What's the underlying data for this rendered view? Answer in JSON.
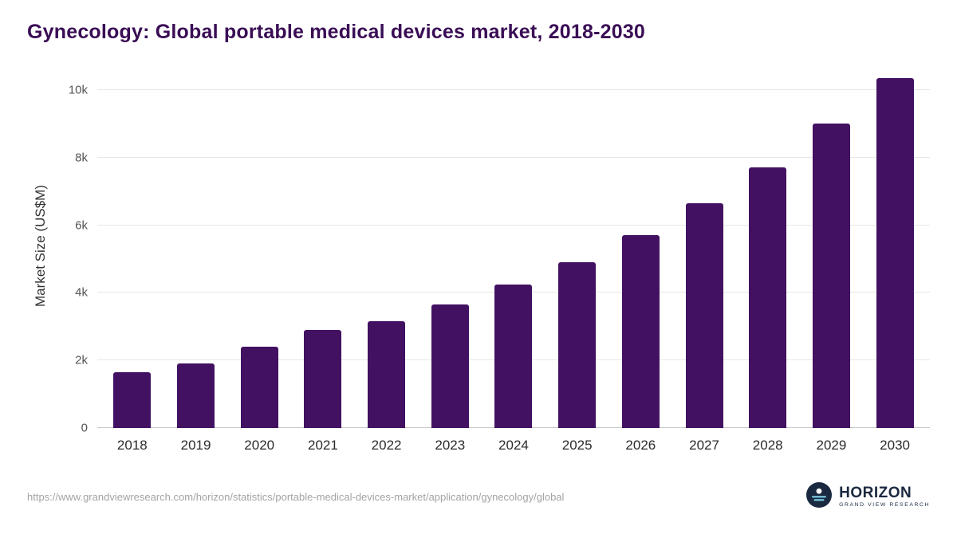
{
  "header": {
    "title": "Gynecology: Global portable medical devices market, 2018-2030"
  },
  "chart_data": {
    "type": "bar",
    "title": "Gynecology: Global portable medical devices market, 2018-2030",
    "categories": [
      "2018",
      "2019",
      "2020",
      "2021",
      "2022",
      "2023",
      "2024",
      "2025",
      "2026",
      "2027",
      "2028",
      "2029",
      "2030"
    ],
    "values": [
      1650,
      1900,
      2400,
      2900,
      3150,
      3650,
      4250,
      4900,
      5700,
      6650,
      7700,
      9000,
      10350
    ],
    "series": [
      {
        "name": "Market Size",
        "values": [
          1650,
          1900,
          2400,
          2900,
          3150,
          3650,
          4250,
          4900,
          5700,
          6650,
          7700,
          9000,
          10350
        ]
      }
    ],
    "xlabel": "",
    "ylabel": "Market Size (US$M)",
    "ylim": [
      0,
      10750
    ],
    "yticks": [
      {
        "value": 0,
        "label": "0"
      },
      {
        "value": 2000,
        "label": "2k"
      },
      {
        "value": 4000,
        "label": "4k"
      },
      {
        "value": 6000,
        "label": "6k"
      },
      {
        "value": 8000,
        "label": "8k"
      },
      {
        "value": 10000,
        "label": "10k"
      }
    ],
    "grid": "horizontal",
    "legend": "none",
    "bar_color": "#421162"
  },
  "footer": {
    "source_url": "https://www.grandviewresearch.com/horizon/statistics/portable-medical-devices-market/application/gynecology/global",
    "logo": {
      "brand": "HORIZON",
      "tagline": "GRAND VIEW RESEARCH"
    }
  },
  "colors": {
    "accent": "#421162",
    "title_text": "#3a0d55",
    "grid": "#e7e7e7",
    "axis": "#c9c9c9",
    "logo_navy": "#1b2940",
    "logo_blue": "#7fd1e8"
  }
}
